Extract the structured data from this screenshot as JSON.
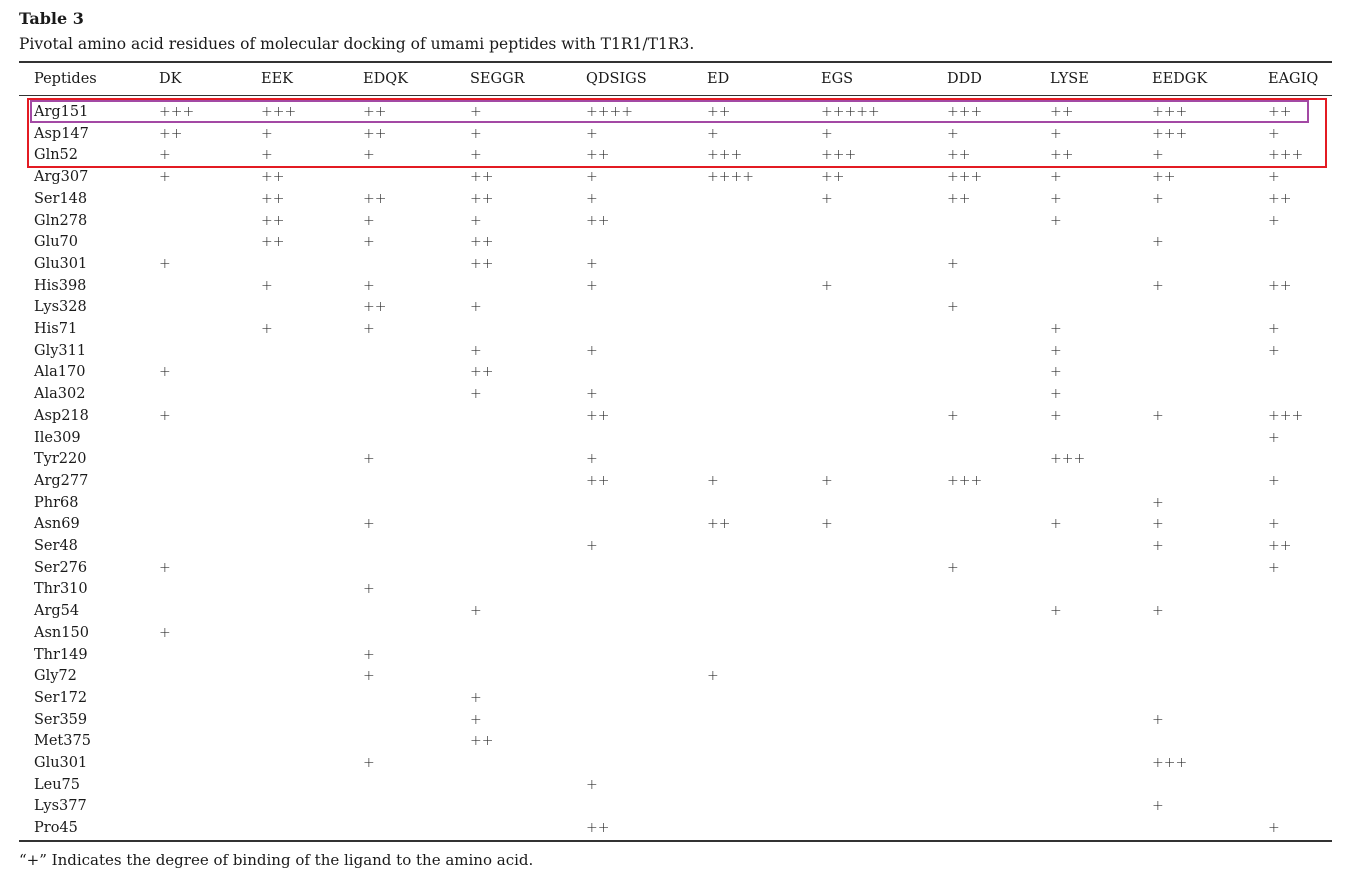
{
  "title": "Table 3",
  "caption": "Pivotal amino acid residues of molecular docking of umami peptides with T1R1/T1R3.",
  "header_first": "Peptides",
  "columns": [
    "DK",
    "EEK",
    "EDQK",
    "SEGGR",
    "QDSIGS",
    "ED",
    "EGS",
    "DDD",
    "LYSE",
    "EEDGK",
    "EAGIQ"
  ],
  "rows": [
    {
      "residue": "Arg151",
      "values": [
        "+++",
        "+++",
        "++",
        "+",
        "++++",
        "++",
        "+++++",
        "+++",
        "++",
        "+++",
        "++"
      ]
    },
    {
      "residue": "Asp147",
      "values": [
        "++",
        "+",
        "++",
        "+",
        "+",
        "+",
        "+",
        "+",
        "+",
        "+++",
        "+"
      ]
    },
    {
      "residue": "Gln52",
      "values": [
        "+",
        "+",
        "+",
        "+",
        "++",
        "+++",
        "+++",
        "++",
        "++",
        "+",
        "+++"
      ]
    },
    {
      "residue": "Arg307",
      "values": [
        "+",
        "++",
        "",
        "++",
        "+",
        "++++",
        "++",
        "+++",
        "+",
        "++",
        "+"
      ]
    },
    {
      "residue": "Ser148",
      "values": [
        "",
        "++",
        "++",
        "++",
        "+",
        "",
        "+",
        "++",
        "+",
        "+",
        "++"
      ]
    },
    {
      "residue": "Gln278",
      "values": [
        "",
        "++",
        "+",
        "+",
        "++",
        "",
        "",
        "",
        "+",
        "",
        "+"
      ]
    },
    {
      "residue": "Glu70",
      "values": [
        "",
        "++",
        "+",
        "++",
        "",
        "",
        "",
        "",
        "",
        "+",
        ""
      ]
    },
    {
      "residue": "Glu301",
      "values": [
        "+",
        "",
        "",
        "++",
        "+",
        "",
        "",
        "+",
        "",
        "",
        ""
      ]
    },
    {
      "residue": "His398",
      "values": [
        "",
        "+",
        "+",
        "",
        "+",
        "",
        "+",
        "",
        "",
        "+",
        "++"
      ]
    },
    {
      "residue": "Lys328",
      "values": [
        "",
        "",
        "++",
        "+",
        "",
        "",
        "",
        "+",
        "",
        "",
        ""
      ]
    },
    {
      "residue": "His71",
      "values": [
        "",
        "+",
        "+",
        "",
        "",
        "",
        "",
        "",
        "+",
        "",
        "+"
      ]
    },
    {
      "residue": "Gly311",
      "values": [
        "",
        "",
        "",
        "+",
        "+",
        "",
        "",
        "",
        "+",
        "",
        "+"
      ]
    },
    {
      "residue": "Ala170",
      "values": [
        "+",
        "",
        "",
        "++",
        "",
        "",
        "",
        "",
        "+",
        "",
        ""
      ]
    },
    {
      "residue": "Ala302",
      "values": [
        "",
        "",
        "",
        "+",
        "+",
        "",
        "",
        "",
        "+",
        "",
        ""
      ]
    },
    {
      "residue": "Asp218",
      "values": [
        "+",
        "",
        "",
        "",
        "++",
        "",
        "",
        "+",
        "+",
        "+",
        "+++"
      ]
    },
    {
      "residue": "Ile309",
      "values": [
        "",
        "",
        "",
        "",
        "",
        "",
        "",
        "",
        "",
        "",
        "+"
      ]
    },
    {
      "residue": "Tyr220",
      "values": [
        "",
        "",
        "+",
        "",
        "+",
        "",
        "",
        "",
        "+++",
        "",
        ""
      ]
    },
    {
      "residue": "Arg277",
      "values": [
        "",
        "",
        "",
        "",
        "++",
        "+",
        "+",
        "+++",
        "",
        "",
        "+"
      ]
    },
    {
      "residue": "Phr68",
      "values": [
        "",
        "",
        "",
        "",
        "",
        "",
        "",
        "",
        "",
        "+",
        ""
      ]
    },
    {
      "residue": "Asn69",
      "values": [
        "",
        "",
        "+",
        "",
        "",
        "++",
        "+",
        "",
        "+",
        "+",
        "+"
      ]
    },
    {
      "residue": "Ser48",
      "values": [
        "",
        "",
        "",
        "",
        "+",
        "",
        "",
        "",
        "",
        "+",
        "++"
      ]
    },
    {
      "residue": "Ser276",
      "values": [
        "+",
        "",
        "",
        "",
        "",
        "",
        "",
        "+",
        "",
        "",
        "+"
      ]
    },
    {
      "residue": "Thr310",
      "values": [
        "",
        "",
        "+",
        "",
        "",
        "",
        "",
        "",
        "",
        "",
        ""
      ]
    },
    {
      "residue": "Arg54",
      "values": [
        "",
        "",
        "",
        "+",
        "",
        "",
        "",
        "",
        "+",
        "+",
        ""
      ]
    },
    {
      "residue": "Asn150",
      "values": [
        "+",
        "",
        "",
        "",
        "",
        "",
        "",
        "",
        "",
        "",
        ""
      ]
    },
    {
      "residue": "Thr149",
      "values": [
        "",
        "",
        "+",
        "",
        "",
        "",
        "",
        "",
        "",
        "",
        ""
      ]
    },
    {
      "residue": "Gly72",
      "values": [
        "",
        "",
        "+",
        "",
        "",
        "+",
        "",
        "",
        "",
        "",
        ""
      ]
    },
    {
      "residue": "Ser172",
      "values": [
        "",
        "",
        "",
        "+",
        "",
        "",
        "",
        "",
        "",
        "",
        ""
      ]
    },
    {
      "residue": "Ser359",
      "values": [
        "",
        "",
        "",
        "+",
        "",
        "",
        "",
        "",
        "",
        "+",
        ""
      ]
    },
    {
      "residue": "Met375",
      "values": [
        "",
        "",
        "",
        "++",
        "",
        "",
        "",
        "",
        "",
        "",
        ""
      ]
    },
    {
      "residue": "Glu301",
      "values": [
        "",
        "",
        "+",
        "",
        "",
        "",
        "",
        "",
        "",
        "+++",
        ""
      ]
    },
    {
      "residue": "Leu75",
      "values": [
        "",
        "",
        "",
        "",
        "+",
        "",
        "",
        "",
        "",
        "",
        ""
      ]
    },
    {
      "residue": "Lys377",
      "values": [
        "",
        "",
        "",
        "",
        "",
        "",
        "",
        "",
        "",
        "+",
        ""
      ]
    },
    {
      "residue": "Pro45",
      "values": [
        "",
        "",
        "",
        "",
        "++",
        "",
        "",
        "",
        "",
        "",
        "+"
      ]
    }
  ],
  "footnote": "“+” Indicates the degree of binding of the ligand to the amino acid.",
  "highlight_colors": {
    "red": "#e31b23",
    "purple": "#a349a4"
  }
}
